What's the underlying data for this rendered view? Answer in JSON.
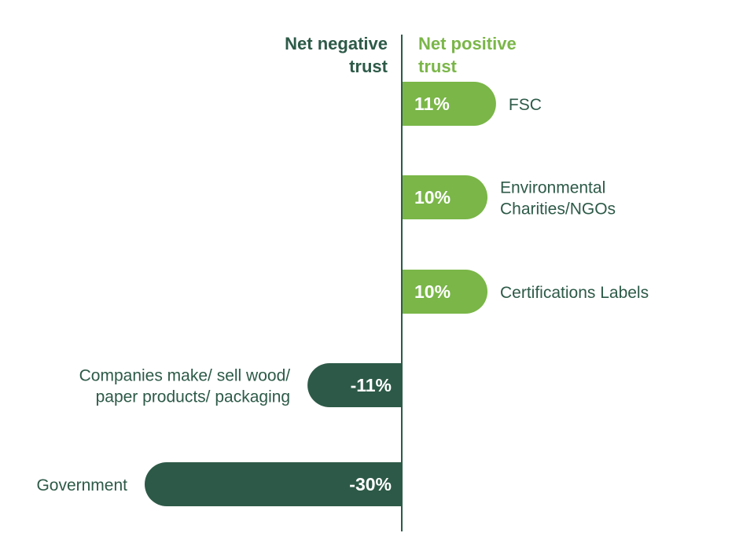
{
  "chart_data": {
    "type": "bar",
    "orientation": "horizontal",
    "headers": {
      "negative": [
        "Net negative",
        "trust"
      ],
      "positive": [
        "Net positive",
        "trust"
      ]
    },
    "categories": [
      [
        "FSC"
      ],
      [
        "Environmental",
        "Charities/NGOs"
      ],
      [
        "Certifications Labels"
      ],
      [
        "Companies make/ sell wood/",
        "paper products/ packaging"
      ],
      [
        "Government"
      ]
    ],
    "values": [
      11,
      10,
      10,
      -11,
      -30
    ],
    "value_labels": [
      "11%",
      "10%",
      "10%",
      "-11%",
      "-30%"
    ],
    "xlim": [
      -30,
      11
    ],
    "unit": "%",
    "grid": false,
    "colors": {
      "positive": "#7ab648",
      "negative": "#2d5a48",
      "axis": "#2d5a48",
      "category_text": "#2d5a48",
      "negative_header": "#2d5a48",
      "positive_header": "#7ab648"
    }
  }
}
